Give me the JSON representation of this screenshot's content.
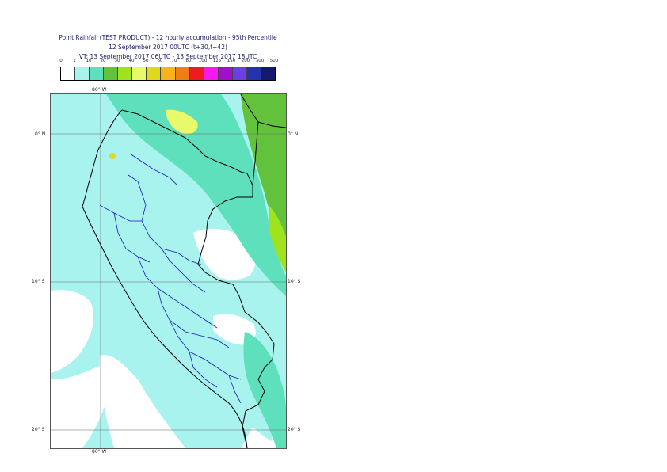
{
  "title": {
    "line1": "Point Rainfall (TEST PRODUCT) - 12 hourly accumulation - 95th Percentile",
    "line2": "12 September 2017 00UTC (t+30,t+42)",
    "line3": "VT: 13 September 2017 06UTC - 13 September 2017 18UTC"
  },
  "legend": {
    "labels": [
      "0",
      "1",
      "10",
      "20",
      "30",
      "40",
      "50",
      "60",
      "70",
      "80",
      "100",
      "125",
      "150",
      "200",
      "300",
      "500"
    ],
    "colors": [
      "#ffffff",
      "#a9f3ef",
      "#5ee0bd",
      "#62c23c",
      "#9fe31f",
      "#e8fa6a",
      "#e0d820",
      "#f7b21c",
      "#f07e18",
      "#ee1c1c",
      "#f718f0",
      "#a20eca",
      "#6d3ee6",
      "#2631ae",
      "#131a6e",
      "#0a0a3c"
    ]
  },
  "map": {
    "lon_label_top": "80° W",
    "lon_label_bottom": "80° W",
    "lat_labels": [
      "0° N",
      "10° S",
      "20° S"
    ]
  }
}
